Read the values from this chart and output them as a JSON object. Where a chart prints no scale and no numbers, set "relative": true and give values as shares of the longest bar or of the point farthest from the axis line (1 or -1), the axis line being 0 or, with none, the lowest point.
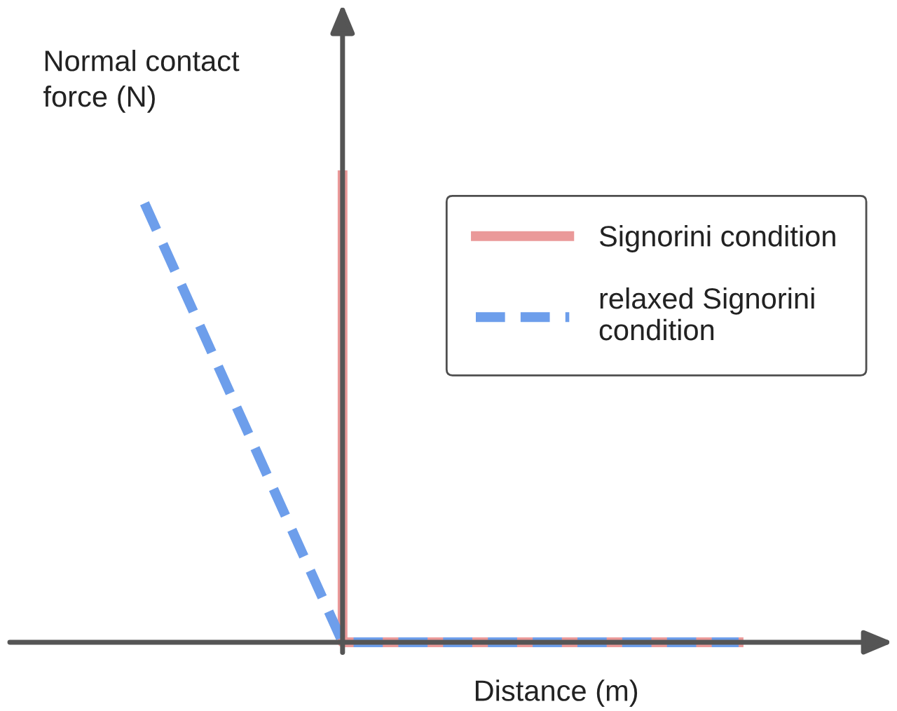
{
  "chart_data": {
    "type": "line",
    "xlabel": "Distance (m)",
    "ylabel": "Normal contact\nforce (N)",
    "relative": true,
    "legend": "top right",
    "marker": "none",
    "categories": [
      null,
      null,
      null,
      null
    ],
    "series": [
      {
        "name": "Signorini condition",
        "type": "step",
        "color": "#ea9999",
        "line_style": "solid",
        "values": [
          null,
          1,
          0,
          0
        ]
      },
      {
        "name": "relaxed Signorini condition",
        "color": "#6d9eeb",
        "line_style": "dashed",
        "values": [
          0.94,
          0,
          0,
          0
        ]
      }
    ]
  }
}
